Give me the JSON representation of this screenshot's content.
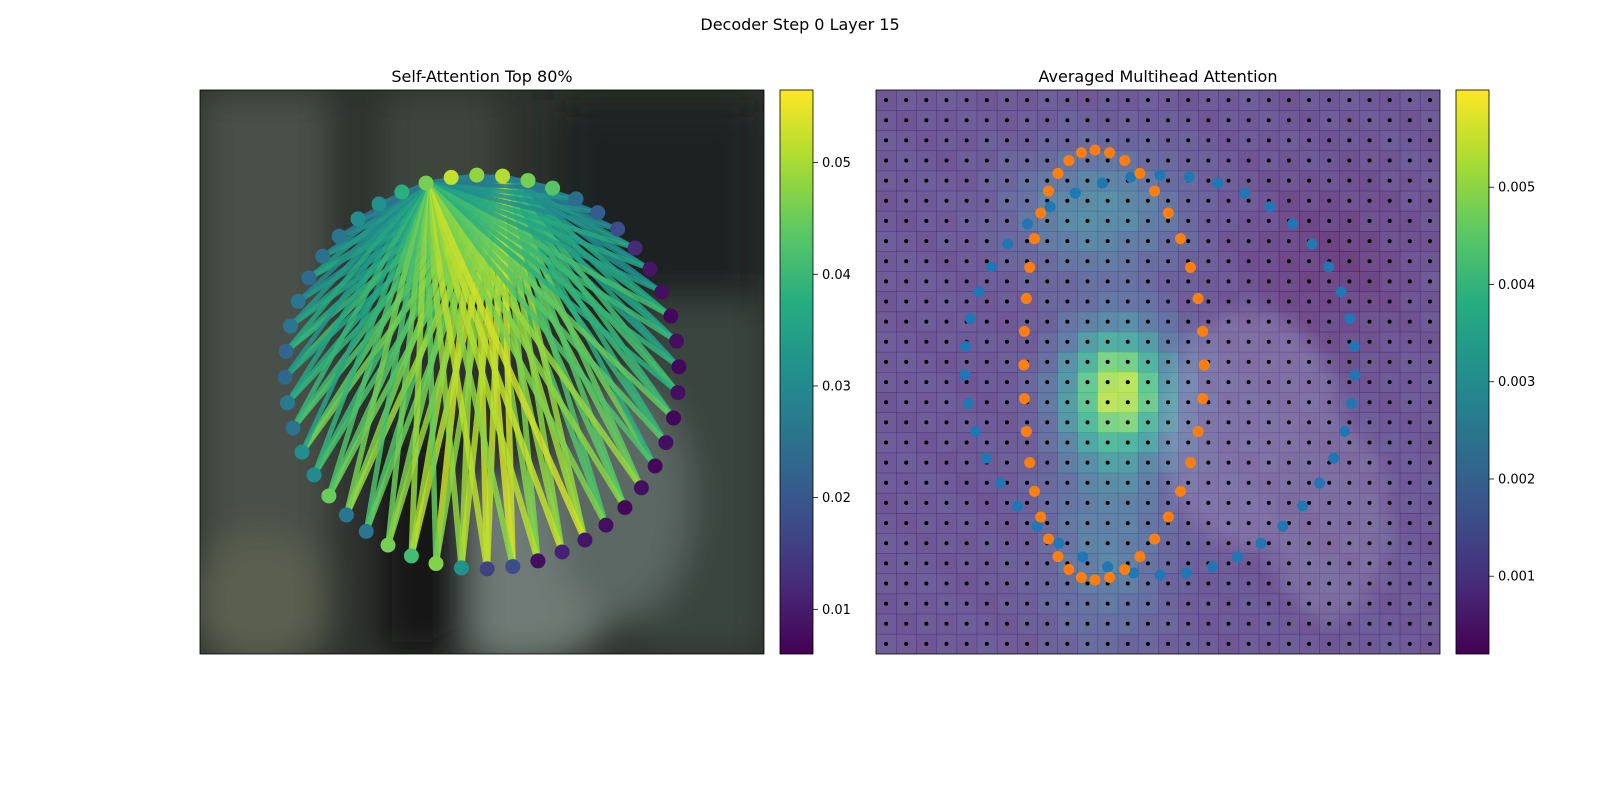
{
  "figure": {
    "suptitle": "Decoder Step 0 Layer 15"
  },
  "chart_data": [
    {
      "type": "network",
      "title": "Self-Attention Top 80%",
      "node_count": 48,
      "node_values": [
        0.052,
        0.048,
        0.051,
        0.046,
        0.043,
        0.024,
        0.021,
        0.018,
        0.012,
        0.009,
        0.008,
        0.007,
        0.008,
        0.007,
        0.008,
        0.007,
        0.008,
        0.007,
        0.008,
        0.007,
        0.008,
        0.009,
        0.011,
        0.008,
        0.018,
        0.016,
        0.032,
        0.047,
        0.041,
        0.046,
        0.026,
        0.026,
        0.045,
        0.03,
        0.031,
        0.025,
        0.027,
        0.023,
        0.023,
        0.026,
        0.026,
        0.024,
        0.025,
        0.026,
        0.031,
        0.032,
        0.038,
        0.046
      ],
      "edges_from": [
        1,
        2,
        47
      ],
      "edge_color_range": [
        0.02,
        0.056
      ],
      "colorbar": {
        "colormap": "viridis",
        "range": [
          0.006,
          0.0565
        ],
        "ticks": [
          "0.01",
          "0.02",
          "0.03",
          "0.04",
          "0.05"
        ],
        "tick_values": [
          0.01,
          0.02,
          0.03,
          0.04,
          0.05
        ]
      }
    },
    {
      "type": "heatmap",
      "title": "Averaged Multihead Attention",
      "grid": [
        28,
        28
      ],
      "hotspot": {
        "row": 14.5,
        "col": 11.5
      },
      "overlay_series": [
        {
          "color": "#ff7f0e",
          "shape": "inner-contour"
        },
        {
          "color": "#1f77b4",
          "shape": "outer-contour"
        }
      ],
      "colorbar": {
        "colormap": "viridis",
        "range": [
          0.0002,
          0.006
        ],
        "ticks": [
          "0.001",
          "0.002",
          "0.003",
          "0.004",
          "0.005"
        ],
        "tick_values": [
          0.001,
          0.002,
          0.003,
          0.004,
          0.005
        ]
      }
    }
  ]
}
